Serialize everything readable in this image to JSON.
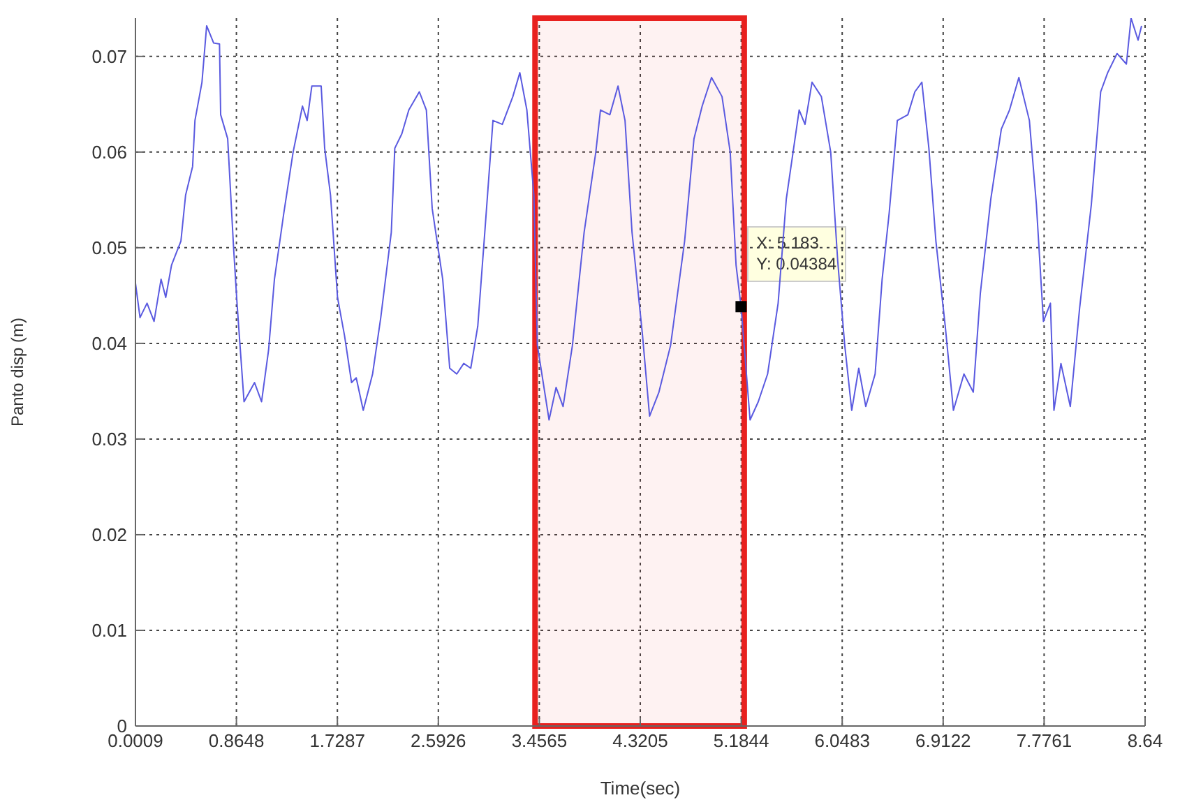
{
  "chart_data": {
    "type": "line",
    "xlabel": "Time(sec)",
    "ylabel": "Panto disp (m)",
    "xlim": [
      0.0009,
      8.64
    ],
    "xticks": [
      0.0009,
      0.8648,
      1.7287,
      2.5926,
      3.4565,
      4.3205,
      5.1844,
      6.0483,
      6.9122,
      7.7761,
      8.64
    ],
    "ylim": [
      0,
      0.074
    ],
    "yticks": [
      0,
      0.01,
      0.02,
      0.03,
      0.04,
      0.05,
      0.06,
      0.07
    ],
    "grid": true,
    "marker": "none",
    "line_style": "solid",
    "bands": [
      {
        "axis": "x",
        "from": 3.42,
        "to": 5.21,
        "color": "#e8211f"
      }
    ],
    "annotations": [
      {
        "text": "X: 5.183\nY: 0.04384",
        "x": 5.183,
        "y": 0.04384
      }
    ],
    "series": [
      {
        "color": "#5a5ae0",
        "x": [
          0.0009,
          0.04,
          0.1,
          0.16,
          0.22,
          0.26,
          0.31,
          0.39,
          0.43,
          0.49,
          0.51,
          0.57,
          0.61,
          0.67,
          0.72,
          0.73,
          0.79,
          0.84,
          0.87,
          0.93,
          1.02,
          1.08,
          1.14,
          1.19,
          1.27,
          1.35,
          1.43,
          1.47,
          1.51,
          1.59,
          1.62,
          1.67,
          1.73,
          1.79,
          1.85,
          1.89,
          1.95,
          2.03,
          2.1,
          2.19,
          2.22,
          2.28,
          2.34,
          2.43,
          2.49,
          2.54,
          2.63,
          2.69,
          2.75,
          2.81,
          2.87,
          2.93,
          2.99,
          3.06,
          3.14,
          3.23,
          3.29,
          3.35,
          3.41,
          3.44,
          3.54,
          3.6,
          3.66,
          3.74,
          3.84,
          3.94,
          3.98,
          4.06,
          4.13,
          4.19,
          4.25,
          4.34,
          4.4,
          4.48,
          4.58,
          4.7,
          4.78,
          4.85,
          4.93,
          5.02,
          5.09,
          5.14,
          5.183,
          5.26,
          5.33,
          5.41,
          5.5,
          5.57,
          5.68,
          5.73,
          5.79,
          5.87,
          5.95,
          6.01,
          6.07,
          6.13,
          6.19,
          6.25,
          6.33,
          6.39,
          6.45,
          6.52,
          6.61,
          6.67,
          6.73,
          6.79,
          6.85,
          6.93,
          7.0,
          7.09,
          7.17,
          7.23,
          7.32,
          7.41,
          7.48,
          7.56,
          7.65,
          7.71,
          7.77,
          7.83,
          7.86,
          7.92,
          8.0,
          8.08,
          8.18,
          8.26,
          8.32,
          8.4,
          8.48,
          8.52,
          8.58,
          8.61
        ],
        "values": [
          0.0463,
          0.0427,
          0.0442,
          0.0423,
          0.0467,
          0.0448,
          0.0482,
          0.0507,
          0.0555,
          0.0585,
          0.0633,
          0.0673,
          0.0732,
          0.0714,
          0.0713,
          0.0639,
          0.0614,
          0.0501,
          0.0442,
          0.0339,
          0.0359,
          0.0339,
          0.0393,
          0.0467,
          0.0536,
          0.06,
          0.0648,
          0.0633,
          0.0669,
          0.0669,
          0.0604,
          0.0555,
          0.0448,
          0.0408,
          0.0359,
          0.0364,
          0.033,
          0.0368,
          0.0427,
          0.0516,
          0.0604,
          0.0619,
          0.0644,
          0.0663,
          0.0644,
          0.0541,
          0.0467,
          0.0374,
          0.0368,
          0.0379,
          0.0374,
          0.0418,
          0.0516,
          0.0633,
          0.0629,
          0.0658,
          0.0683,
          0.0644,
          0.0555,
          0.0398,
          0.032,
          0.0354,
          0.0334,
          0.0398,
          0.0516,
          0.06,
          0.0644,
          0.0639,
          0.0669,
          0.0633,
          0.0516,
          0.0408,
          0.0324,
          0.0349,
          0.0398,
          0.0507,
          0.0614,
          0.0648,
          0.0678,
          0.0658,
          0.06,
          0.0482,
          0.04384,
          0.032,
          0.0339,
          0.0368,
          0.0442,
          0.0551,
          0.0644,
          0.0629,
          0.0673,
          0.0658,
          0.06,
          0.0486,
          0.0398,
          0.033,
          0.0374,
          0.0334,
          0.0368,
          0.0467,
          0.0536,
          0.0633,
          0.0639,
          0.0663,
          0.0673,
          0.0604,
          0.0507,
          0.0418,
          0.033,
          0.0368,
          0.0349,
          0.0452,
          0.0551,
          0.0624,
          0.0644,
          0.0678,
          0.0633,
          0.0545,
          0.0423,
          0.0442,
          0.033,
          0.0379,
          0.0334,
          0.0437,
          0.0545,
          0.0663,
          0.0683,
          0.0703,
          0.0692,
          0.074,
          0.0717,
          0.0732
        ]
      }
    ]
  }
}
